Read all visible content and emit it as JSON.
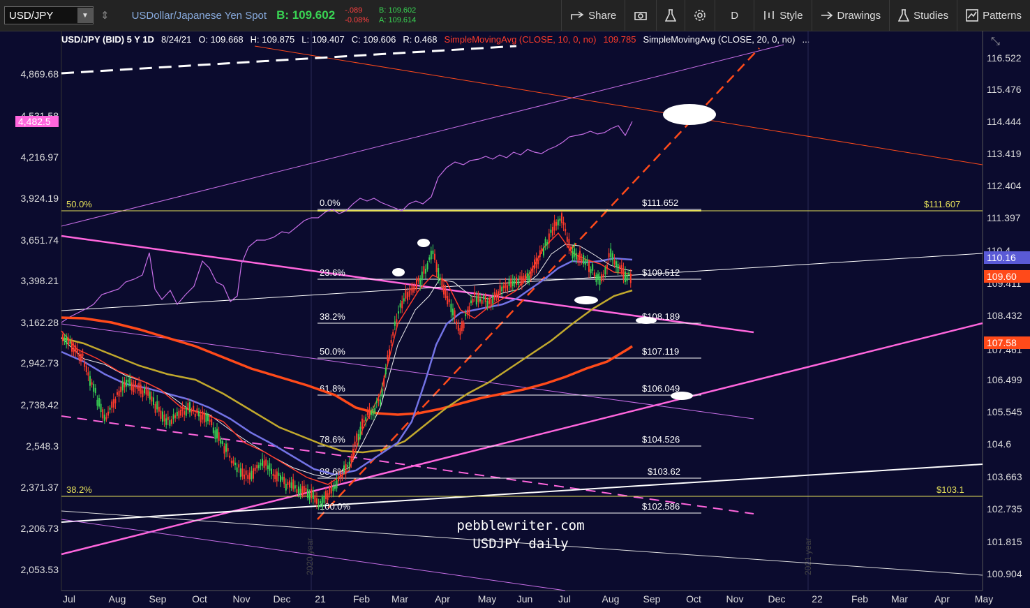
{
  "toolbar": {
    "symbol": "USD/JPY",
    "description": "USDollar/Japanese Yen Spot",
    "bid": "B: 109.602",
    "change": "-.089",
    "change_pct": "-0.08%",
    "bid_small": "B: 109.602",
    "ask_small": "A: 109.614",
    "share": "Share",
    "period": "D",
    "style": "Style",
    "drawings": "Drawings",
    "studies": "Studies",
    "patterns": "Patterns"
  },
  "info_bar": {
    "symbol": "USD/JPY (BID) 5 Y 1D",
    "date": "8/24/21",
    "open": "O: 109.668",
    "high": "H: 109.875",
    "low": "L: 109.407",
    "close": "C: 109.606",
    "range": "R: 0.468",
    "sma10": "SimpleMovingAvg (CLOSE, 10, 0, no)",
    "sma10_value": "109.785",
    "sma20": "SimpleMovingAvg (CLOSE, 20, 0, no)",
    "ellipsis": "..."
  },
  "colors": {
    "background": "#0b0b2e",
    "toolbar": "#232323",
    "fib": "#ffffff",
    "yellow": "#e5e05a",
    "pink": "#ff66dd",
    "orange_line": "#ff4a1a",
    "spx": "#c86fe8",
    "up_candle": "#39d353",
    "down_candle": "#ff3b2a"
  },
  "left_axis": [
    "4,869.68",
    "4,531.58",
    "4,482.5",
    "4,216.97",
    "3,924.19",
    "3,651.74",
    "3,398.21",
    "3,162.28",
    "2,942.73",
    "2,738.42",
    "2,548.3",
    "2,371.37",
    "2,206.73",
    "2,053.53"
  ],
  "right_axis": [
    "116.522",
    "115.476",
    "114.444",
    "113.419",
    "112.404",
    "111.397",
    "110.4",
    "109.411",
    "108.432",
    "107.461",
    "106.499",
    "105.545",
    "104.6",
    "103.663",
    "102.735",
    "101.815",
    "100.904"
  ],
  "right_badges": [
    "110.16",
    "109.60",
    "107.58"
  ],
  "x_axis": [
    "Jul",
    "Aug",
    "Sep",
    "Oct",
    "Nov",
    "Dec",
    "21",
    "Feb",
    "Mar",
    "Apr",
    "May",
    "Jun",
    "Jul",
    "Aug",
    "Sep",
    "Oct",
    "Nov",
    "Dec",
    "22",
    "Feb",
    "Mar",
    "Apr",
    "May"
  ],
  "year_labels": [
    "2020 year",
    "2021 year"
  ],
  "fib_levels": [
    {
      "pct": "0.0%",
      "price": "$111.652"
    },
    {
      "pct": "23.6%",
      "price": "$109.512"
    },
    {
      "pct": "38.2%",
      "price": "$108.189"
    },
    {
      "pct": "50.0%",
      "price": "$107.119"
    },
    {
      "pct": "61.8%",
      "price": "$106.049"
    },
    {
      "pct": "78.6%",
      "price": "$104.526"
    },
    {
      "pct": "88.6%",
      "price": "$103.62"
    },
    {
      "pct": "100.0%",
      "price": "$102.586"
    }
  ],
  "yellow_levels": [
    {
      "pct": "50.0%",
      "price": "$111.607"
    },
    {
      "pct": "38.2%",
      "price": "$103.1"
    }
  ],
  "watermark": [
    "pebblewriter.com",
    "USDJPY daily"
  ]
}
